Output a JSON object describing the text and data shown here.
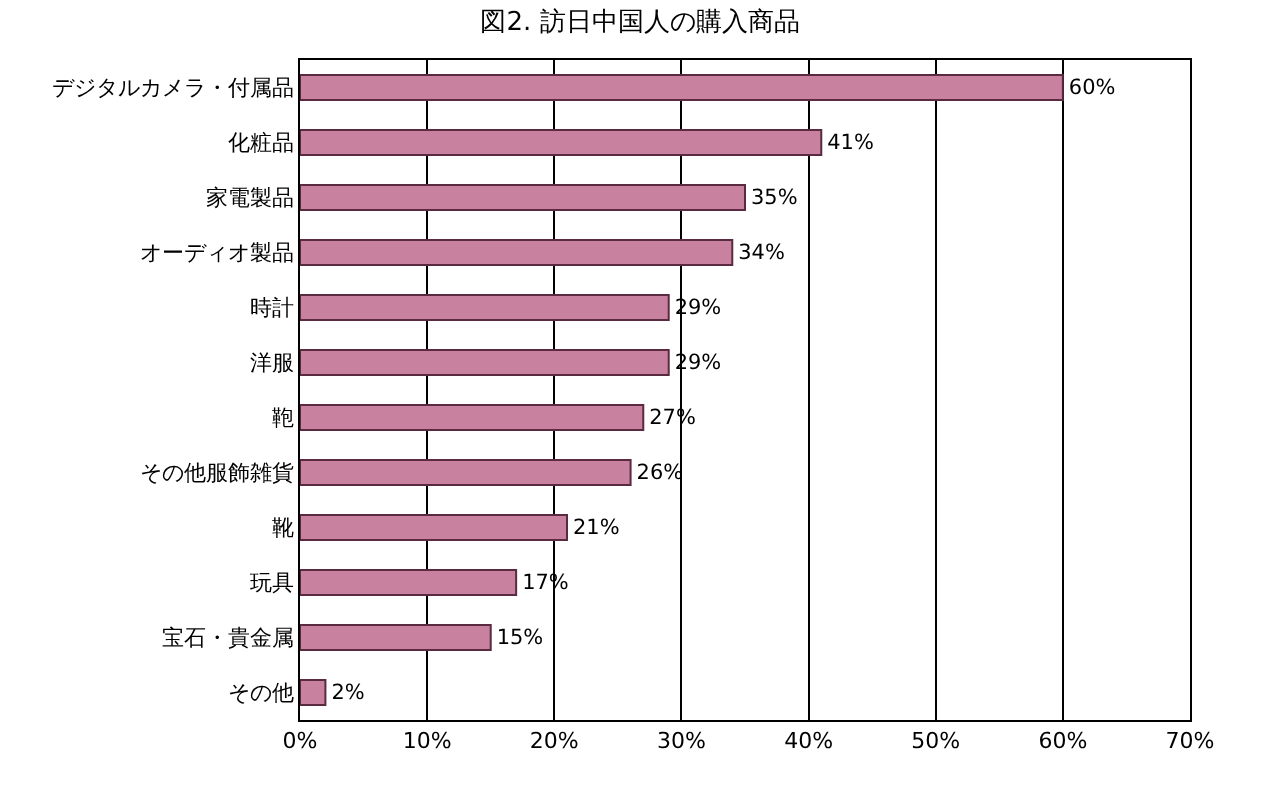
{
  "chart_data": {
    "type": "bar",
    "orientation": "horizontal",
    "title": "図2. 訪日中国人の購入商品",
    "categories": [
      "デジタルカメラ・付属品",
      "化粧品",
      "家電製品",
      "オーディオ製品",
      "時計",
      "洋服",
      "鞄",
      "その他服飾雑貨",
      "靴",
      "玩具",
      "宝石・貴金属",
      "その他"
    ],
    "values": [
      60,
      41,
      35,
      34,
      29,
      29,
      27,
      26,
      21,
      17,
      15,
      2
    ],
    "value_labels": [
      "60%",
      "41%",
      "35%",
      "34%",
      "29%",
      "29%",
      "27%",
      "26%",
      "21%",
      "17%",
      "15%",
      "2%"
    ],
    "color": "#c8819f",
    "xlim": [
      0,
      70
    ],
    "xticks": [
      {
        "value": 0,
        "label": "0%"
      },
      {
        "value": 10,
        "label": "10%"
      },
      {
        "value": 20,
        "label": "20%"
      },
      {
        "value": 30,
        "label": "30%"
      },
      {
        "value": 40,
        "label": "40%"
      },
      {
        "value": 50,
        "label": "50%"
      },
      {
        "value": 60,
        "label": "60%"
      },
      {
        "value": 70,
        "label": "70%"
      }
    ],
    "grid": "x",
    "legend": false
  }
}
